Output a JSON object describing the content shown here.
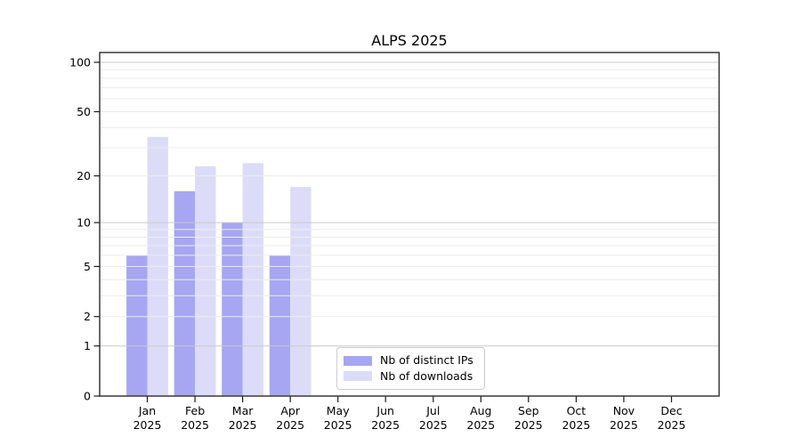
{
  "chart_data": {
    "type": "bar",
    "title": "ALPS 2025",
    "categories": [
      "Jan",
      "Feb",
      "Mar",
      "Apr",
      "May",
      "Jun",
      "Jul",
      "Aug",
      "Sep",
      "Oct",
      "Nov",
      "Dec"
    ],
    "x_tick_second_line": "2025",
    "series": [
      {
        "name": "Nb of distinct IPs",
        "color": "#a6a6f2",
        "values": [
          6,
          16,
          10,
          6,
          0,
          0,
          0,
          0,
          0,
          0,
          0,
          0
        ]
      },
      {
        "name": "Nb of downloads",
        "color": "#dcdcf9",
        "values": [
          35,
          23,
          24,
          17,
          0,
          0,
          0,
          0,
          0,
          0,
          0,
          0
        ]
      }
    ],
    "yscale": "symlog",
    "ylabel": "",
    "xlabel": "",
    "yticks": [
      0,
      1,
      2,
      5,
      10,
      20,
      50,
      100
    ],
    "major_gridlines": [
      1,
      10,
      100
    ],
    "minor_gridlines": [
      2,
      3,
      4,
      5,
      6,
      7,
      8,
      9,
      20,
      30,
      40,
      50,
      60,
      70,
      80,
      90
    ],
    "ylim": [
      0,
      115
    ],
    "grid": "on, drawn above bars",
    "legend_position": "lower center, boxed",
    "colors": {
      "axis": "#1a1a1a",
      "tick_text": "#000000",
      "major_grid": "#c9c9c9",
      "minor_grid": "#ececec",
      "legend_border": "#cccccc",
      "background": "#ffffff"
    }
  }
}
